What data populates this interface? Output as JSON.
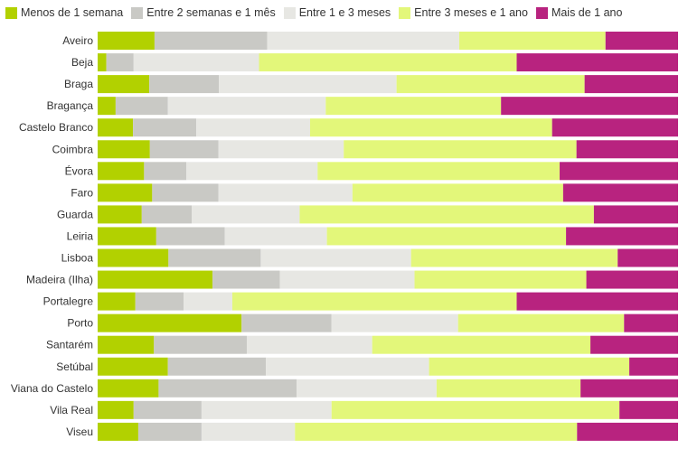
{
  "chart_data": {
    "type": "bar",
    "orientation": "horizontal",
    "stacked": "percent",
    "xlim": [
      0,
      100
    ],
    "grid": false,
    "legend_position": "top-left",
    "categories": [
      "Aveiro",
      "Beja",
      "Braga",
      "Bragança",
      "Castelo Branco",
      "Coimbra",
      "Évora",
      "Faro",
      "Guarda",
      "Leiria",
      "Lisboa",
      "Madeira (Ilha)",
      "Portalegre",
      "Porto",
      "Santarém",
      "Setúbal",
      "Viana do Castelo",
      "Vila Real",
      "Viseu"
    ],
    "series": [
      {
        "name": "Menos de 1 semana",
        "color": "#b2d100",
        "values": [
          9.8,
          1.5,
          8.9,
          3.1,
          6.1,
          9.0,
          8.0,
          9.4,
          7.6,
          10.1,
          12.2,
          19.8,
          6.5,
          24.8,
          9.7,
          12.1,
          10.5,
          6.2,
          7.0
        ]
      },
      {
        "name": "Entre 2 semanas e 1 mês",
        "color": "#c9c9c5",
        "values": [
          19.4,
          4.7,
          12.0,
          9.0,
          10.9,
          11.8,
          7.3,
          11.4,
          8.6,
          11.8,
          15.9,
          11.6,
          8.3,
          15.5,
          16.0,
          16.9,
          23.8,
          11.7,
          10.9
        ]
      },
      {
        "name": "Entre 1 e 3 meses",
        "color": "#e7e7e3",
        "values": [
          33.1,
          21.6,
          30.6,
          27.2,
          19.6,
          21.6,
          22.6,
          23.1,
          18.6,
          17.6,
          25.9,
          23.2,
          8.4,
          21.8,
          21.6,
          28.1,
          24.1,
          22.4,
          16.1
        ]
      },
      {
        "name": "Entre 3 meses e 1 ano",
        "color": "#e3f77a",
        "values": [
          25.2,
          44.4,
          32.4,
          30.2,
          41.7,
          40.1,
          41.7,
          36.3,
          50.7,
          41.2,
          35.6,
          29.6,
          49.0,
          28.6,
          37.6,
          34.5,
          24.8,
          49.6,
          48.6
        ]
      },
      {
        "name": "Mais de 1 ano",
        "color": "#b8237f",
        "values": [
          12.5,
          27.8,
          16.1,
          30.5,
          21.7,
          17.5,
          20.4,
          19.8,
          14.5,
          19.3,
          10.4,
          15.8,
          27.8,
          9.3,
          15.1,
          8.4,
          16.8,
          10.7,
          17.4
        ]
      }
    ]
  }
}
